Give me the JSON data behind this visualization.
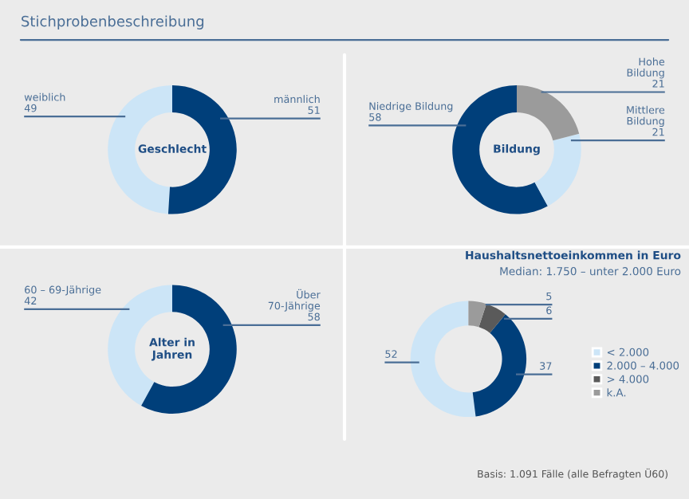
{
  "chart_data": [
    {
      "type": "donut",
      "title": "Geschlecht",
      "annotations": [
        "Stichprobenbeschreibung"
      ],
      "categories": [
        "weiblich",
        "männlich"
      ],
      "values": [
        49,
        51
      ],
      "colors": [
        "#cce5f7",
        "#003f7a"
      ],
      "data_labels": true
    },
    {
      "type": "donut",
      "title": "Bildung",
      "categories": [
        "Niedrige Bildung",
        "Mittlere Bildung",
        "Hohe Bildung"
      ],
      "values": [
        58,
        21,
        21
      ],
      "colors": [
        "#003f7a",
        "#cce5f7",
        "#9b9b9b"
      ],
      "data_labels": true
    },
    {
      "type": "donut",
      "title": "Alter in Jahren",
      "categories": [
        "60 – 69-Jährige",
        "Über 70-Jährige"
      ],
      "values": [
        42,
        58
      ],
      "colors": [
        "#cce5f7",
        "#003f7a"
      ],
      "data_labels": true
    },
    {
      "type": "donut",
      "title": "Haushaltsnettoeinkommen in Euro",
      "subtitle": "Median: 1.750 – unter 2.000 Euro",
      "annotations": [
        "Basis: 1.091 Fälle (alle Befragten Ü60)"
      ],
      "categories": [
        "< 2.000",
        "2.000 – 4.000",
        "> 4.000",
        "k.A."
      ],
      "values": [
        52,
        37,
        6,
        5
      ],
      "colors": [
        "#cce5f7",
        "#003f7a",
        "#5a5a5a",
        "#9b9b9b"
      ],
      "data_labels": true,
      "legend": "right"
    }
  ]
}
